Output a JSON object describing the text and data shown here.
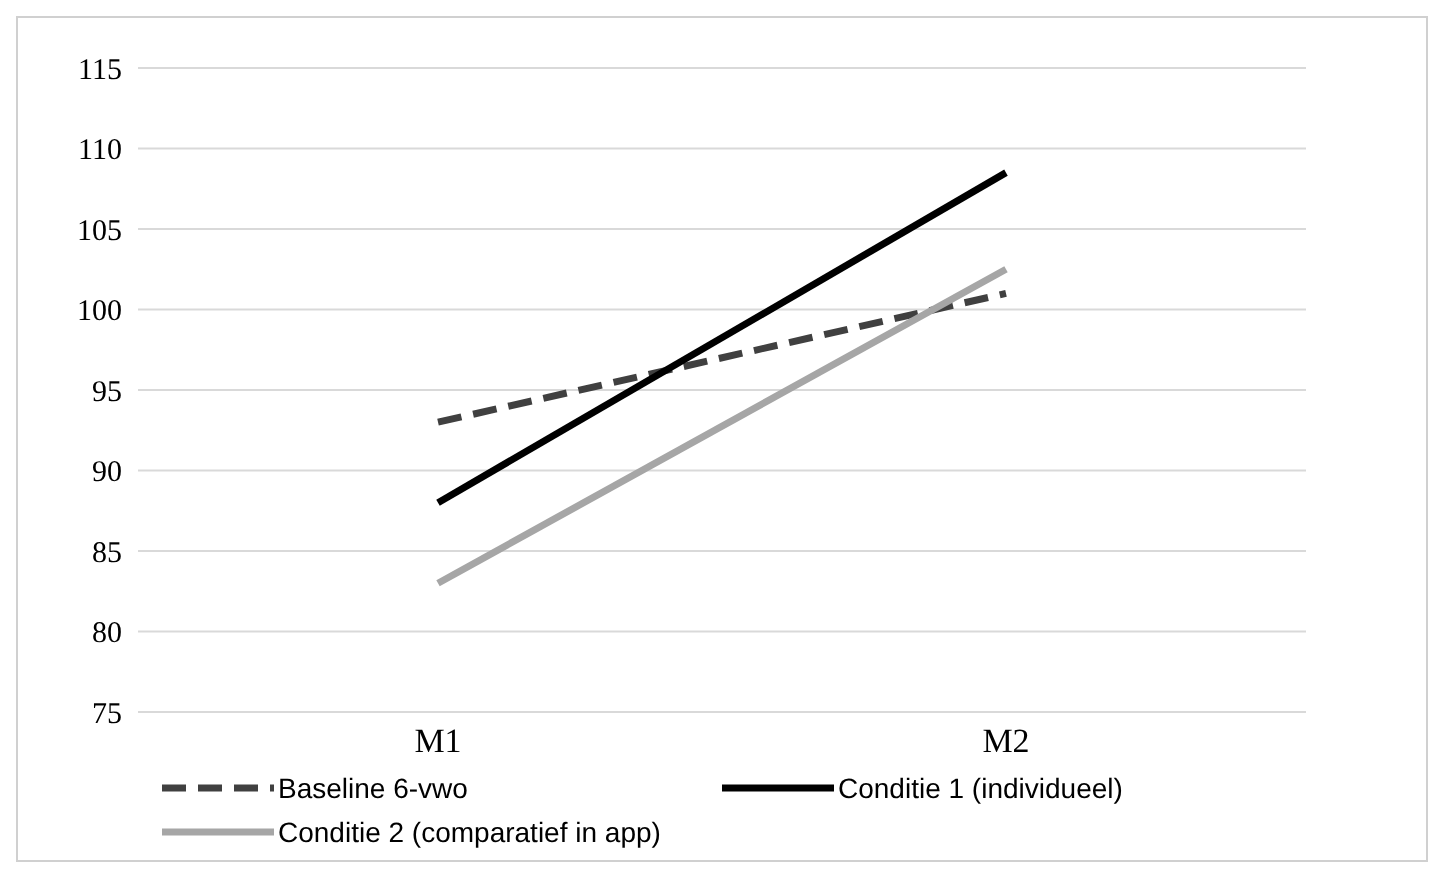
{
  "chart_data": {
    "type": "line",
    "categories": [
      "M1",
      "M2"
    ],
    "series": [
      {
        "name": "Baseline 6-vwo",
        "color": "#404040",
        "values": [
          93,
          101
        ],
        "line_style": "dashed"
      },
      {
        "name": "Conditie 1 (individueel)",
        "color": "#000000",
        "values": [
          88,
          108.5
        ],
        "line_style": "solid"
      },
      {
        "name": "Conditie 2 (comparatief in app)",
        "color": "#a6a6a6",
        "values": [
          83,
          102.5
        ],
        "line_style": "solid"
      }
    ],
    "ylim": [
      75,
      115
    ],
    "yticks": [
      75,
      80,
      85,
      90,
      95,
      100,
      105,
      110,
      115
    ],
    "grid": "y",
    "legend": "bottom",
    "marker": "none"
  }
}
